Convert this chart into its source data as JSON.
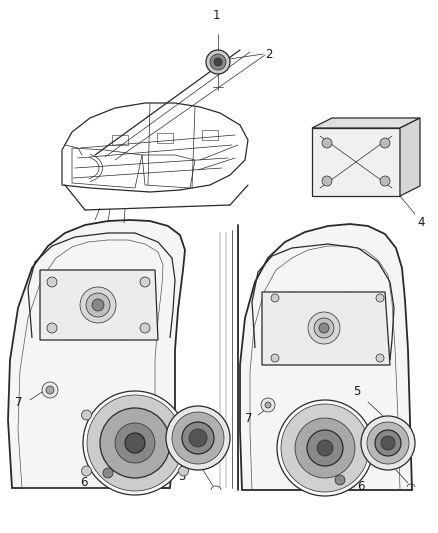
{
  "bg_color": "#ffffff",
  "line_color": "#2a2a2a",
  "line_color_light": "#555555",
  "label_color": "#1a1a1a",
  "fig_width": 4.38,
  "fig_height": 5.33,
  "dpi": 100,
  "label_fontsize": 8.5,
  "lw_main": 0.9,
  "lw_thin": 0.5,
  "lw_thick": 1.3
}
